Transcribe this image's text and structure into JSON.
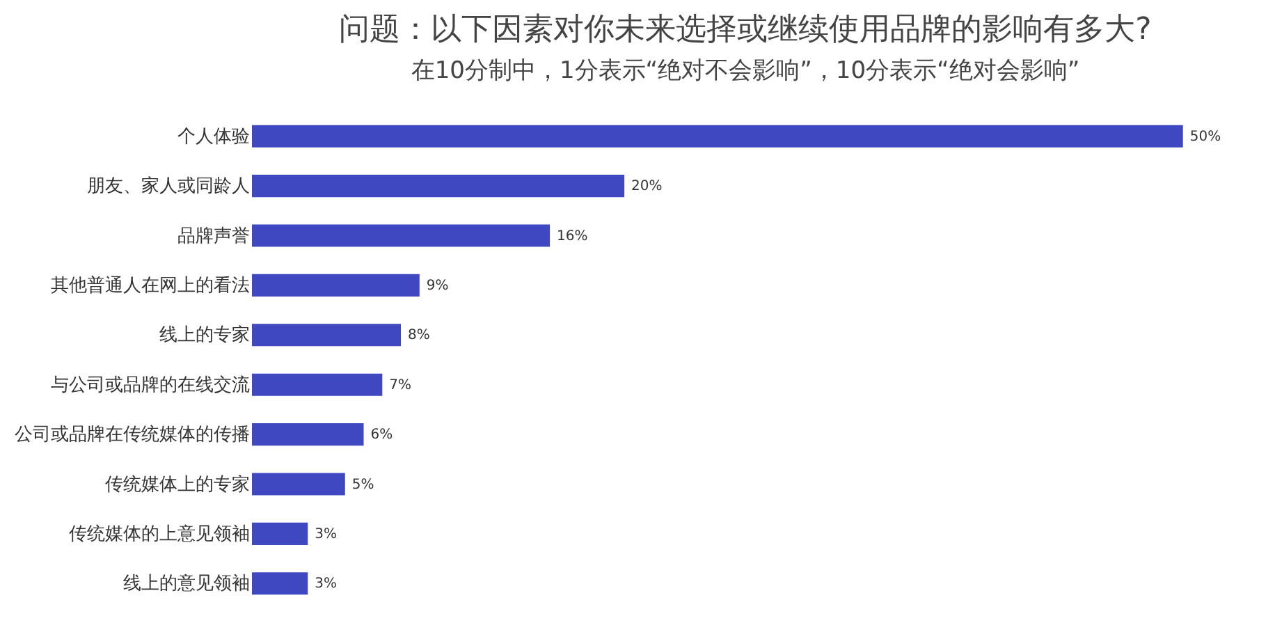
{
  "chart_data": {
    "type": "bar",
    "orientation": "horizontal",
    "title": "问题：以下因素对你未来选择或继续使用品牌的影响有多大?",
    "subtitle": "在10分制中，1分表示“绝对不会影响”，10分表示“绝对会影响”",
    "categories": [
      "个人体验",
      "朋友、家人或同龄人",
      "品牌声誉",
      "其他普通人在网上的看法",
      "线上的专家",
      "与公司或品牌的在线交流",
      "公司或品牌在传统媒体的传播",
      "传统媒体上的专家",
      "传统媒体的上意见领袖",
      "线上的意见领袖"
    ],
    "values": [
      50,
      20,
      16,
      9,
      8,
      7,
      6,
      5,
      3,
      3
    ],
    "value_labels": [
      "50%",
      "20%",
      "16%",
      "9%",
      "8%",
      "7%",
      "6%",
      "5%",
      "3%",
      "3%"
    ],
    "color": "#3f48c0"
  }
}
